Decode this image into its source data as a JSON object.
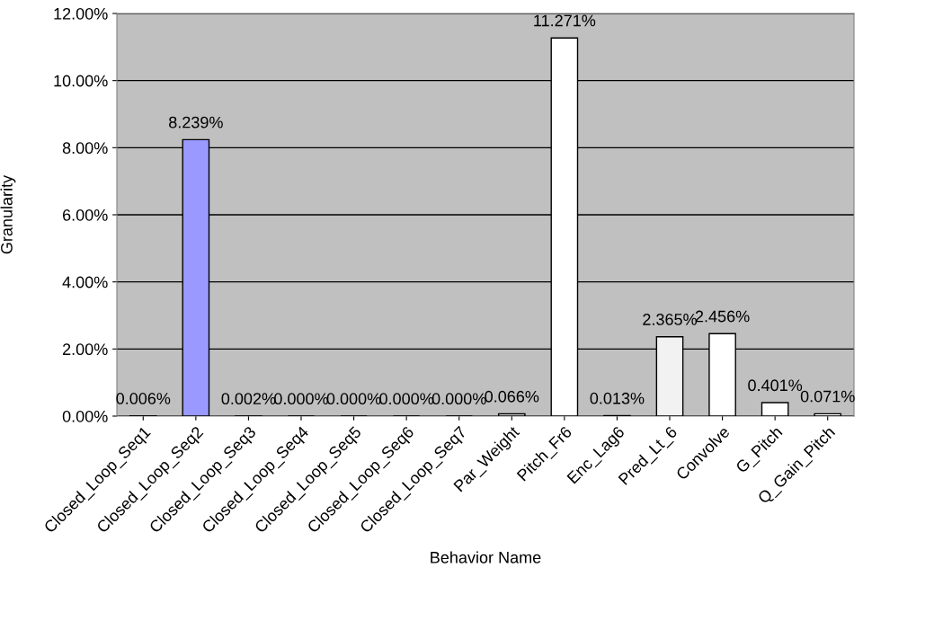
{
  "chart_data": {
    "type": "bar",
    "xlabel": "Behavior Name",
    "ylabel": "Granularity",
    "categories": [
      "Closed_Loop_Seq1",
      "Closed_Loop_Seq2",
      "Closed_Loop_Seq3",
      "Closed_Loop_Seq4",
      "Closed_Loop_Seq5",
      "Closed_Loop_Seq6",
      "Closed_Loop_Seq7",
      "Par_Weight",
      "Pitch_Fr6",
      "Enc_Lag6",
      "Pred_Lt_6",
      "Convolve",
      "G_Pitch",
      "Q_Gain_Pitch"
    ],
    "values": [
      0.006,
      8.239,
      0.002,
      0.0,
      0.0,
      0.0,
      0.0,
      0.066,
      11.271,
      0.013,
      2.365,
      2.456,
      0.401,
      0.071
    ],
    "value_labels": [
      "0.006%",
      "8.239%",
      "0.002%",
      "0.000%",
      "0.000%",
      "0.000%",
      "0.000%",
      "0.066%",
      "11.271%",
      "0.013%",
      "2.365%",
      "2.456%",
      "0.401%",
      "0.071%"
    ],
    "colors": [
      "#ffffff",
      "#9999ff",
      "#ffffff",
      "#000000",
      "#000000",
      "#000000",
      "#000000",
      "#ffffff",
      "#ffffff",
      "#ffffff",
      "#f2f2f2",
      "#ffffff",
      "#ffffff",
      "#ffffff"
    ],
    "ylim": [
      0,
      12
    ],
    "yticks": [
      {
        "value": 0,
        "label": "0.00%"
      },
      {
        "value": 2,
        "label": "2.00%"
      },
      {
        "value": 4,
        "label": "4.00%"
      },
      {
        "value": 6,
        "label": "6.00%"
      },
      {
        "value": 8,
        "label": "8.00%"
      },
      {
        "value": 10,
        "label": "10.00%"
      },
      {
        "value": 12,
        "label": "12.00%"
      }
    ],
    "grid": "y",
    "legend": false
  }
}
